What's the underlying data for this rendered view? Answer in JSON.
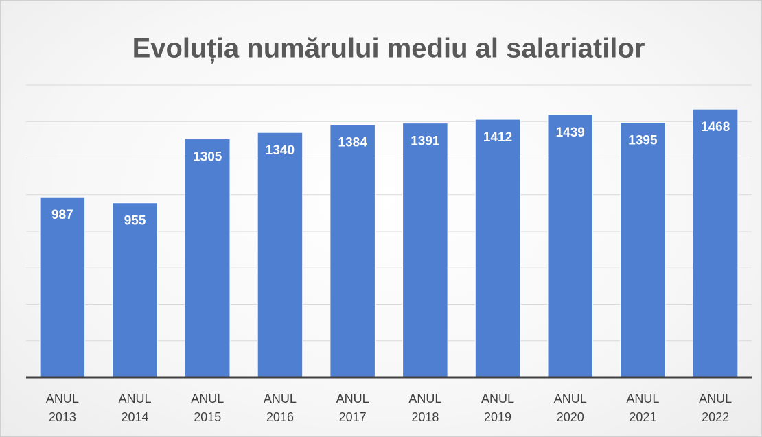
{
  "chart_data": {
    "type": "bar",
    "title": "Evoluția numărului mediu al salariatilor",
    "categories": [
      "ANUL 2013",
      "ANUL 2014",
      "ANUL 2015",
      "ANUL 2016",
      "ANUL 2017",
      "ANUL 2018",
      "ANUL 2019",
      "ANUL 2020",
      "ANUL 2021",
      "ANUL 2022"
    ],
    "values": [
      987,
      955,
      1305,
      1340,
      1384,
      1391,
      1412,
      1439,
      1395,
      1468
    ],
    "color": "#4f7fd1",
    "ylim": [
      0,
      1600
    ],
    "yticks": [
      0,
      200,
      400,
      600,
      800,
      1000,
      1200,
      1400,
      1600
    ],
    "grid": true
  }
}
